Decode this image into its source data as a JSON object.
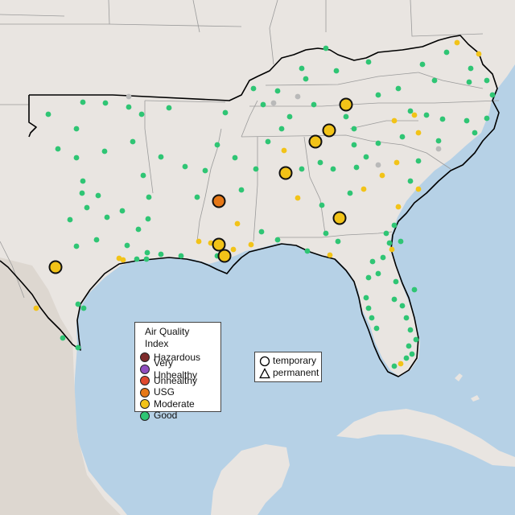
{
  "legend": {
    "title": "Air Quality Index",
    "categories": [
      {
        "label": "Hazardous",
        "color": "#7e2b2b"
      },
      {
        "label": "Very Unhealthy",
        "color": "#8f4fbf"
      },
      {
        "label": "Unhealthy",
        "color": "#e04a2f"
      },
      {
        "label": "USG",
        "color": "#e67817"
      },
      {
        "label": "Moderate",
        "color": "#f2c318"
      },
      {
        "label": "Good",
        "color": "#2fc574"
      }
    ],
    "no_data_color": "#b9b9b9"
  },
  "monitor_types": [
    {
      "label": "temporary",
      "icon": "circle-icon"
    },
    {
      "label": "permanent",
      "icon": "triangle-icon"
    }
  ],
  "colors": {
    "land": "#e9e5e1",
    "water": "#b6d1e6",
    "state_border": "#9a9a9a",
    "region_outline": "#000000"
  }
}
